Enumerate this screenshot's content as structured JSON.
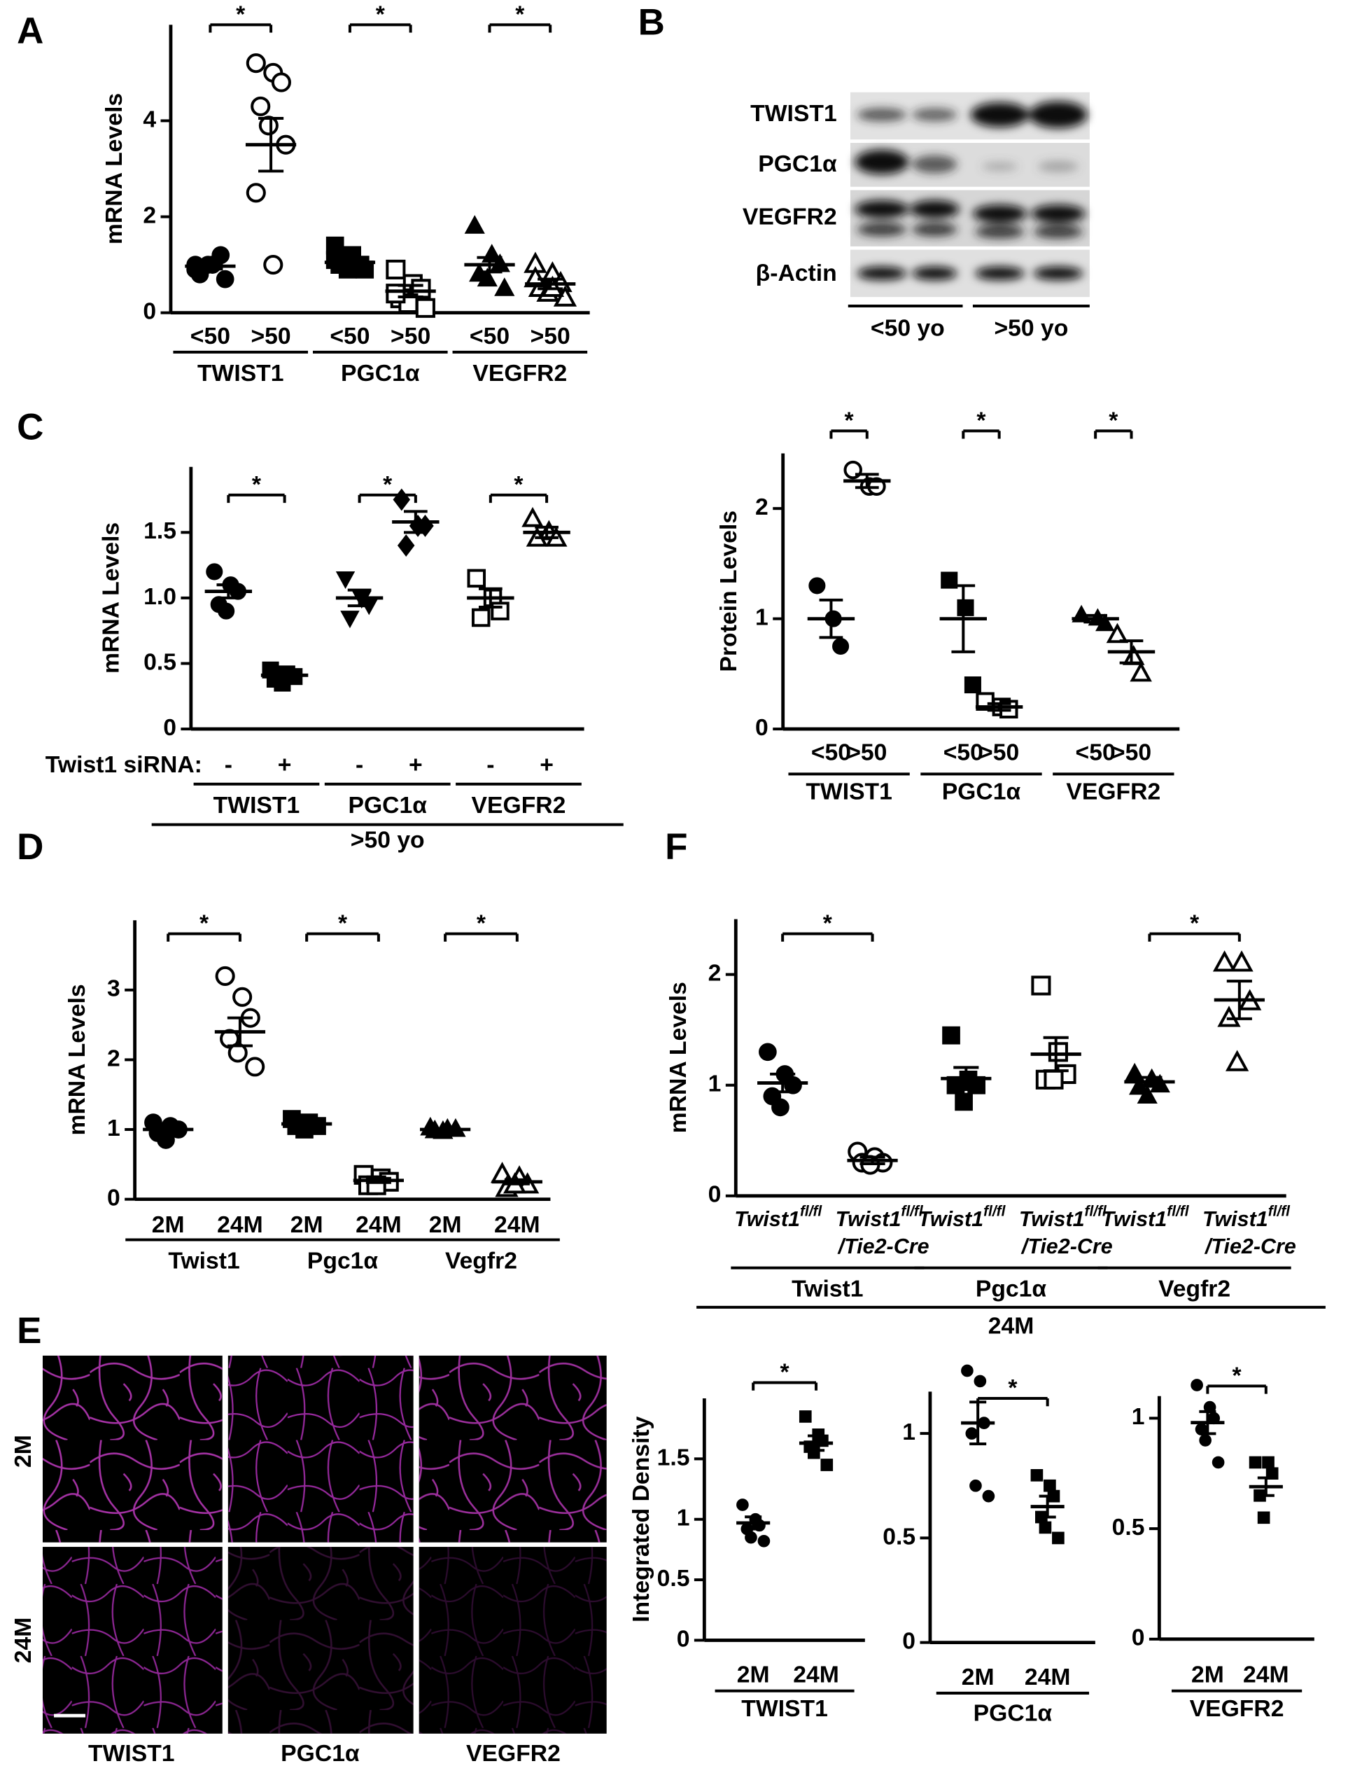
{
  "blot": {
    "panel": "B",
    "rows": [
      "TWIST1",
      "PGC1α",
      "VEGFR2",
      "β-Actin"
    ],
    "groups": [
      "<50 yo",
      ">50 yo"
    ]
  },
  "micrographs": {
    "panel": "E",
    "rows": [
      "2M",
      "24M"
    ],
    "columns": [
      "TWIST1",
      "PGC1α",
      "VEGFR2"
    ]
  },
  "chart_data": [
    {
      "type": "dot",
      "panel": "A",
      "ylabel": "mRNA Levels",
      "ylim": [
        0,
        6
      ],
      "yticks": [
        0,
        2,
        4
      ],
      "groups": [
        {
          "name": "TWIST1",
          "star": "*",
          "categories": [
            "<50",
            ">50"
          ],
          "markers": [
            "circle",
            "circle-open"
          ],
          "points": [
            [
              0.9,
              1.0,
              1.2,
              0.8,
              1.0,
              0.7,
              1.0
            ],
            [
              5.2,
              5.0,
              4.8,
              4.3,
              3.9,
              3.5,
              2.5,
              1.0
            ]
          ],
          "means": [
            0.97,
            3.5
          ],
          "errors": [
            0.06,
            0.55
          ]
        },
        {
          "name": "PGC1α",
          "star": "*",
          "categories": [
            "<50",
            ">50"
          ],
          "markers": [
            "square",
            "square-open"
          ],
          "points": [
            [
              1.4,
              1.2,
              1.0,
              1.0,
              0.9,
              0.9,
              1.1
            ],
            [
              0.9,
              0.6,
              0.5,
              0.3,
              0.2,
              0.1,
              0.4
            ]
          ],
          "means": [
            1.05,
            0.45
          ],
          "errors": [
            0.1,
            0.12
          ]
        },
        {
          "name": "VEGFR2",
          "star": "*",
          "categories": [
            "<50",
            ">50"
          ],
          "markers": [
            "triangle",
            "triangle-open"
          ],
          "points": [
            [
              1.8,
              1.2,
              1.0,
              0.8,
              0.7,
              0.5
            ],
            [
              1.0,
              0.8,
              0.6,
              0.5,
              0.4,
              0.3,
              0.7,
              0.5
            ]
          ],
          "means": [
            1.0,
            0.6
          ],
          "errors": [
            0.15,
            0.1
          ]
        }
      ]
    },
    {
      "type": "dot",
      "panel": "C",
      "ylabel": "mRNA Levels",
      "ylim": [
        0,
        2
      ],
      "yticks": [
        0,
        0.5,
        {
          "value": 1,
          "label": "1.0"
        },
        1.5
      ],
      "row_label": "Twist1 siRNA:",
      "supergroup": ">50 yo",
      "groups": [
        {
          "name": "TWIST1",
          "star": "*",
          "categories": [
            "-",
            "+"
          ],
          "markers": [
            "circle",
            "square"
          ],
          "points": [
            [
              1.2,
              1.1,
              1.05,
              0.95,
              0.9
            ],
            [
              0.45,
              0.42,
              0.4,
              0.38,
              0.35
            ]
          ],
          "means": [
            1.05,
            0.41
          ],
          "errors": [
            0.05,
            0.03
          ]
        },
        {
          "name": "PGC1α",
          "star": "*",
          "categories": [
            "-",
            "+"
          ],
          "markers": [
            "triangle-down",
            "diamond"
          ],
          "points": [
            [
              1.15,
              1.0,
              0.95,
              0.85
            ],
            [
              1.75,
              1.55,
              1.55,
              1.4
            ]
          ],
          "means": [
            1.0,
            1.58
          ],
          "errors": [
            0.06,
            0.08
          ]
        },
        {
          "name": "VEGFR2",
          "star": "*",
          "categories": [
            "-",
            "+"
          ],
          "markers": [
            "square-open",
            "triangle-open"
          ],
          "points": [
            [
              1.15,
              1.0,
              0.9,
              0.85
            ],
            [
              1.6,
              1.5,
              1.45,
              1.45
            ]
          ],
          "means": [
            1.0,
            1.5
          ],
          "errors": [
            0.07,
            0.04
          ]
        }
      ]
    },
    {
      "type": "dot",
      "ylabel": "Protein Levels",
      "ylim": [
        0,
        2.5
      ],
      "yticks": [
        0,
        1,
        2
      ],
      "groups": [
        {
          "name": "TWIST1",
          "star": "*",
          "categories": [
            "<50",
            ">50"
          ],
          "markers": [
            "circle",
            "circle-open"
          ],
          "points": [
            [
              1.3,
              1.0,
              0.75
            ],
            [
              2.35,
              2.2,
              2.2
            ]
          ],
          "means": [
            1.0,
            2.25
          ],
          "errors": [
            0.17,
            0.06
          ]
        },
        {
          "name": "PGC1α",
          "star": "*",
          "categories": [
            "<50",
            ">50"
          ],
          "markers": [
            "square",
            "square-open"
          ],
          "points": [
            [
              1.35,
              1.1,
              0.4
            ],
            [
              0.25,
              0.2,
              0.18
            ]
          ],
          "means": [
            1.0,
            0.2
          ],
          "errors": [
            0.3,
            0.03
          ]
        },
        {
          "name": "VEGFR2",
          "star": "*",
          "categories": [
            "<50",
            ">50"
          ],
          "markers": [
            "triangle",
            "triangle-open"
          ],
          "points": [
            [
              1.03,
              1.0,
              0.95
            ],
            [
              0.85,
              0.65,
              0.5
            ]
          ],
          "means": [
            1.0,
            0.7
          ],
          "errors": [
            0.03,
            0.1
          ]
        }
      ]
    },
    {
      "type": "dot",
      "panel": "D",
      "ylabel": "mRNA Levels",
      "ylim": [
        0,
        4
      ],
      "yticks": [
        0,
        1,
        2,
        3
      ],
      "groups": [
        {
          "name": "Twist1",
          "star": "*",
          "categories": [
            "2M",
            "24M"
          ],
          "markers": [
            "circle",
            "circle-open"
          ],
          "points": [
            [
              1.1,
              1.05,
              1.0,
              0.95,
              0.85
            ],
            [
              3.2,
              2.9,
              2.6,
              2.3,
              2.1,
              1.9
            ]
          ],
          "means": [
            1.0,
            2.4
          ],
          "errors": [
            0.04,
            0.2
          ]
        },
        {
          "name": "Pgc1α",
          "star": "*",
          "categories": [
            "2M",
            "24M"
          ],
          "markers": [
            "square",
            "square-open"
          ],
          "points": [
            [
              1.15,
              1.1,
              1.05,
              1.05,
              1.0
            ],
            [
              0.35,
              0.3,
              0.25,
              0.2,
              0.2
            ]
          ],
          "means": [
            1.08,
            0.27
          ],
          "errors": [
            0.03,
            0.03
          ]
        },
        {
          "name": "Vegfr2",
          "star": "*",
          "categories": [
            "2M",
            "24M"
          ],
          "markers": [
            "triangle",
            "triangle-open"
          ],
          "points": [
            [
              1.02,
              1.0,
              1.0,
              0.98,
              0.97
            ],
            [
              0.35,
              0.3,
              0.2,
              0.15,
              0.2
            ]
          ],
          "means": [
            1.0,
            0.25
          ],
          "errors": [
            0.01,
            0.03
          ]
        }
      ]
    },
    {
      "type": "dot",
      "panel": "F",
      "ylabel": "mRNA Levels",
      "ylim": [
        0,
        2.5
      ],
      "yticks": [
        0,
        1,
        2
      ],
      "supergroup": "24M",
      "groups": [
        {
          "name": "Twist1",
          "star": "*",
          "categories": [
            {
              "name": "Twist1",
              "sup": "fl/fl"
            },
            {
              "name": "Twist1",
              "sup": "fl/fl",
              "line2": "/Tie2-Cre"
            }
          ],
          "markers": [
            "circle",
            "circle-open"
          ],
          "points": [
            [
              1.3,
              1.1,
              1.0,
              0.9,
              0.8
            ],
            [
              0.4,
              0.35,
              0.3,
              0.3,
              0.28
            ]
          ],
          "means": [
            1.02,
            0.32
          ],
          "errors": [
            0.08,
            0.03
          ]
        },
        {
          "name": "Pgc1α",
          "categories": [
            {
              "name": "Twist1",
              "sup": "fl/fl"
            },
            {
              "name": "Twist1",
              "sup": "fl/fl",
              "line2": "/Tie2-Cre"
            }
          ],
          "markers": [
            "square",
            "square-open"
          ],
          "points": [
            [
              1.45,
              1.05,
              1.0,
              1.0,
              0.85
            ],
            [
              1.9,
              1.3,
              1.1,
              1.05,
              1.05
            ]
          ],
          "means": [
            1.06,
            1.28
          ],
          "errors": [
            0.1,
            0.15
          ]
        },
        {
          "name": "Vegfr2",
          "star": "*",
          "categories": [
            {
              "name": "Twist1",
              "sup": "fl/fl"
            },
            {
              "name": "Twist1",
              "sup": "fl/fl",
              "line2": "/Tie2-Cre"
            }
          ],
          "markers": [
            "triangle",
            "triangle-open"
          ],
          "points": [
            [
              1.1,
              1.05,
              1.0,
              0.98,
              0.9
            ],
            [
              2.1,
              2.1,
              1.75,
              1.6,
              1.2
            ]
          ],
          "means": [
            1.03,
            1.77
          ],
          "errors": [
            0.04,
            0.17
          ]
        }
      ]
    },
    {
      "type": "dot",
      "ylabel": "Integrated Density",
      "ylim": [
        0,
        2
      ],
      "yticks": [
        0,
        0.5,
        1,
        1.5
      ],
      "groups": [
        {
          "name": "TWIST1",
          "star": "*",
          "categories": [
            "2M",
            "24M"
          ],
          "markers": [
            "circle",
            "square"
          ],
          "points": [
            [
              1.12,
              1.0,
              0.95,
              0.92,
              0.85,
              0.82
            ],
            [
              1.85,
              1.7,
              1.65,
              1.6,
              1.55,
              1.45
            ]
          ],
          "means": [
            0.97,
            1.63
          ],
          "errors": [
            0.05,
            0.06
          ]
        }
      ]
    },
    {
      "type": "dot",
      "ylim": [
        0,
        1.2
      ],
      "yticks": [
        0,
        0.5,
        1
      ],
      "groups": [
        {
          "name": "PGC1α",
          "star": "*",
          "categories": [
            "2M",
            "24M"
          ],
          "markers": [
            "circle",
            "square"
          ],
          "points": [
            [
              1.3,
              1.25,
              1.05,
              1.0,
              0.75,
              0.7
            ],
            [
              0.8,
              0.75,
              0.7,
              0.6,
              0.55,
              0.5
            ]
          ],
          "means": [
            1.05,
            0.65
          ],
          "errors": [
            0.1,
            0.05
          ]
        }
      ]
    },
    {
      "type": "dot",
      "ylim": [
        0,
        1.1
      ],
      "yticks": [
        0,
        0.5,
        1
      ],
      "groups": [
        {
          "name": "VEGFR2",
          "star": "*",
          "categories": [
            "2M",
            "24M"
          ],
          "markers": [
            "circle",
            "square"
          ],
          "points": [
            [
              1.15,
              1.05,
              1.0,
              0.95,
              0.9,
              0.8
            ],
            [
              0.8,
              0.8,
              0.75,
              0.65,
              0.55
            ]
          ],
          "means": [
            0.98,
            0.69
          ],
          "errors": [
            0.05,
            0.04
          ]
        }
      ]
    }
  ]
}
